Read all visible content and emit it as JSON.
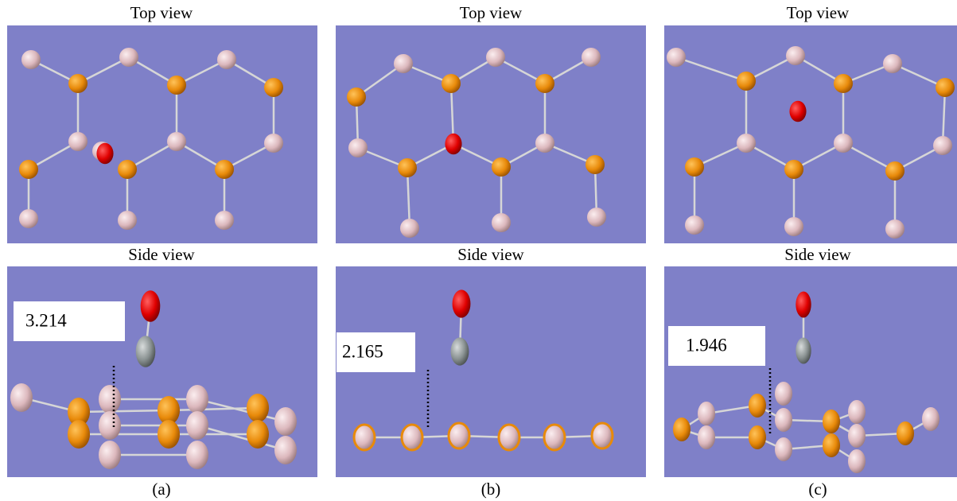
{
  "panels": [
    {
      "top_label": "Top view",
      "side_label": "Side view",
      "distance": "3.214",
      "caption": "(a)"
    },
    {
      "top_label": "Top view",
      "side_label": "Side view",
      "distance": "2.165",
      "caption": "(b)"
    },
    {
      "top_label": "Top view",
      "side_label": "Side view",
      "distance": "1.946",
      "caption": "(c)"
    }
  ]
}
